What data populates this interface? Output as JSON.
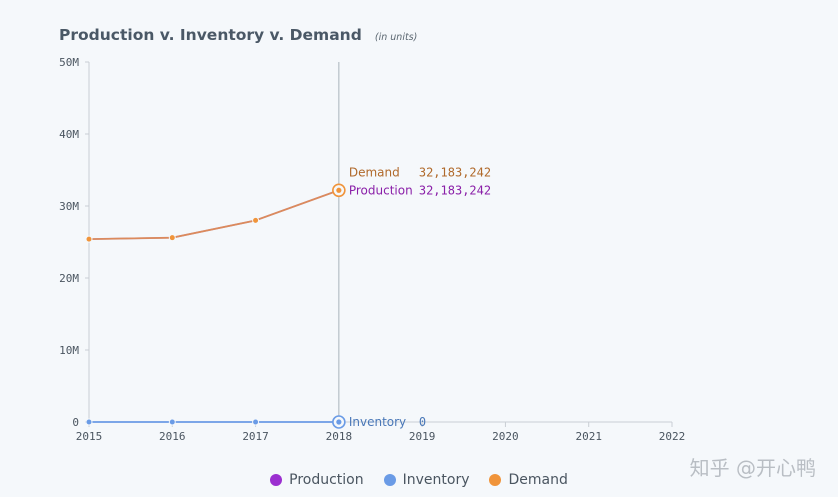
{
  "header": {
    "title": "Production v. Inventory v. Demand",
    "subtitle": "(in units)"
  },
  "watermark": "知乎 @开心鸭",
  "tooltip": {
    "rows": [
      {
        "label": "Demand",
        "value": "32,183,242",
        "color": "#b0692a"
      },
      {
        "label": "Production",
        "value": "32,183,242",
        "color": "#8a1fa8"
      },
      {
        "label": "Inventory",
        "value": "0",
        "color": "#4a78b8"
      }
    ]
  },
  "chart_data": {
    "type": "line",
    "title": "Production v. Inventory v. Demand",
    "subtitle": "(in units)",
    "x": [
      2015,
      2016,
      2017,
      2018
    ],
    "xticks": [
      "2015",
      "2016",
      "2017",
      "2018",
      "2019",
      "2020",
      "2021",
      "2022"
    ],
    "xlim": [
      2015,
      2022
    ],
    "ylim": [
      0,
      50000000
    ],
    "yticks": [
      "0",
      "10M",
      "20M",
      "30M",
      "40M",
      "50M"
    ],
    "series": [
      {
        "name": "Production",
        "color": "#9b2fd0",
        "values": [
          25400000,
          25600000,
          28000000,
          32183242
        ]
      },
      {
        "name": "Inventory",
        "color": "#6a9be6",
        "values": [
          0,
          0,
          0,
          0
        ]
      },
      {
        "name": "Demand",
        "color": "#f0943a",
        "values": [
          25400000,
          25600000,
          28000000,
          32183242
        ]
      }
    ],
    "hover_x": 2018,
    "legend": "bottom-center",
    "grid": false
  }
}
